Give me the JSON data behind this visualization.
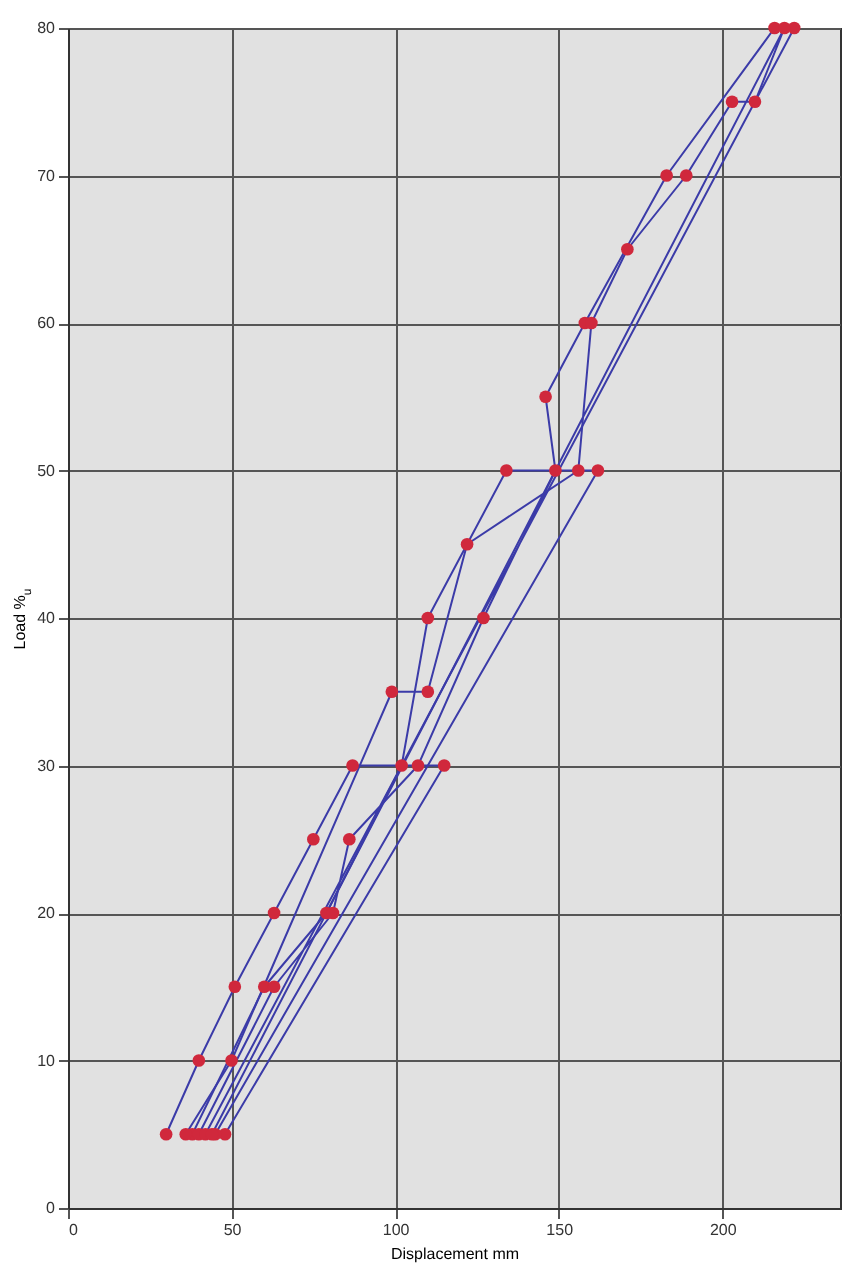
{
  "chart_data": {
    "type": "line",
    "xlabel": "Displacement mm",
    "ylabel": "Load %$_{u}$",
    "xlim": [
      0,
      236
    ],
    "ylim": [
      0,
      80
    ],
    "xticks": [
      0,
      50,
      100,
      150,
      200
    ],
    "yticks": [
      0,
      10,
      20,
      30,
      40,
      50,
      60,
      70,
      80
    ],
    "grid": true,
    "line_style": "solid",
    "marker": "circle",
    "series": [
      {
        "color": "#3b3ba8",
        "marker": "none",
        "x": [
          30,
          40,
          51,
          63,
          75,
          87,
          115,
          48
        ],
        "values": [
          5,
          10,
          15,
          20,
          25,
          30,
          30,
          5
        ]
      },
      {
        "color": "#3b3ba8",
        "marker": "none",
        "x": [
          38,
          60,
          79,
          102,
          110,
          134,
          162,
          45
        ],
        "values": [
          5,
          15,
          20,
          30,
          40,
          50,
          50,
          5
        ]
      },
      {
        "color": "#3b3ba8",
        "marker": "none",
        "x": [
          40,
          63,
          81,
          86,
          107,
          127,
          149,
          146,
          158,
          183,
          216,
          222,
          42
        ],
        "values": [
          5,
          15,
          20,
          25,
          30,
          40,
          50,
          55,
          60,
          70,
          80,
          80,
          5
        ]
      },
      {
        "color": "#3b3ba8",
        "marker": "none",
        "x": [
          36,
          50,
          99,
          110,
          122,
          156,
          160,
          171,
          189,
          203,
          210,
          219,
          44
        ],
        "values": [
          5,
          10,
          35,
          35,
          45,
          50,
          60,
          65,
          70,
          75,
          75,
          80,
          5
        ]
      },
      {
        "type": "scatter",
        "color": "#d0283c",
        "x": [
          30,
          40,
          51,
          63,
          75,
          87,
          115,
          48,
          38,
          60,
          79,
          102,
          110,
          134,
          162,
          45,
          40,
          63,
          81,
          86,
          107,
          127,
          149,
          146,
          158,
          183,
          216,
          222,
          42,
          36,
          50,
          99,
          110,
          122,
          156,
          160,
          171,
          189,
          203,
          210,
          219,
          44
        ],
        "values": [
          5,
          10,
          15,
          20,
          25,
          30,
          30,
          5,
          5,
          15,
          20,
          30,
          40,
          50,
          50,
          5,
          5,
          15,
          20,
          25,
          30,
          40,
          50,
          55,
          60,
          70,
          80,
          80,
          5,
          5,
          10,
          35,
          35,
          45,
          50,
          60,
          65,
          70,
          75,
          75,
          80,
          5
        ]
      }
    ]
  }
}
